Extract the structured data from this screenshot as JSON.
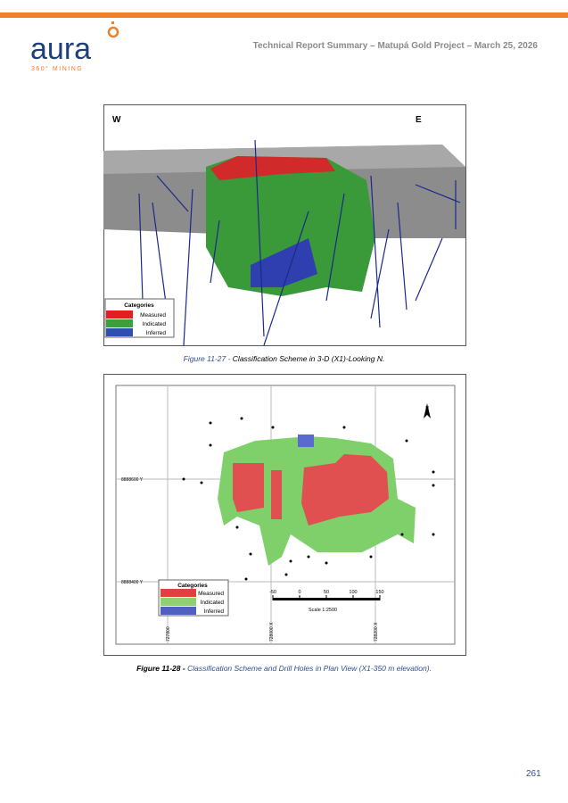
{
  "header": {
    "logo": "aura",
    "logo_sub": "360° MINING",
    "title": "Technical Report Summary – Matupá Gold Project – March 25, 2026"
  },
  "figure_1": {
    "west": "W",
    "east": "E",
    "legend": {
      "title": "Categories",
      "items": [
        "Measured",
        "Indicated",
        "Inferred"
      ]
    },
    "caption": {
      "label": "Figure 11-27 -",
      "text": "Classification Scheme in 3-D (X1)-Looking N."
    }
  },
  "figure_2": {
    "north": "N",
    "grid_y": [
      "8888600 Y",
      "8888400 Y"
    ],
    "grid_x": [
      "727800",
      "728000 X",
      "728200 X"
    ],
    "legend": {
      "title": "Categories",
      "items": [
        "Measured",
        "Indicated",
        "Inferred"
      ]
    },
    "scale": {
      "ticks": [
        "-50",
        "0",
        "50",
        "100",
        "150"
      ],
      "label": "Scale 1:2500"
    },
    "caption": {
      "label": "Figure 11-28 -",
      "text": "Classification Scheme and Drill Holes in Plan View (X1-350 m elevation)."
    }
  },
  "footer": {
    "page": "261"
  }
}
